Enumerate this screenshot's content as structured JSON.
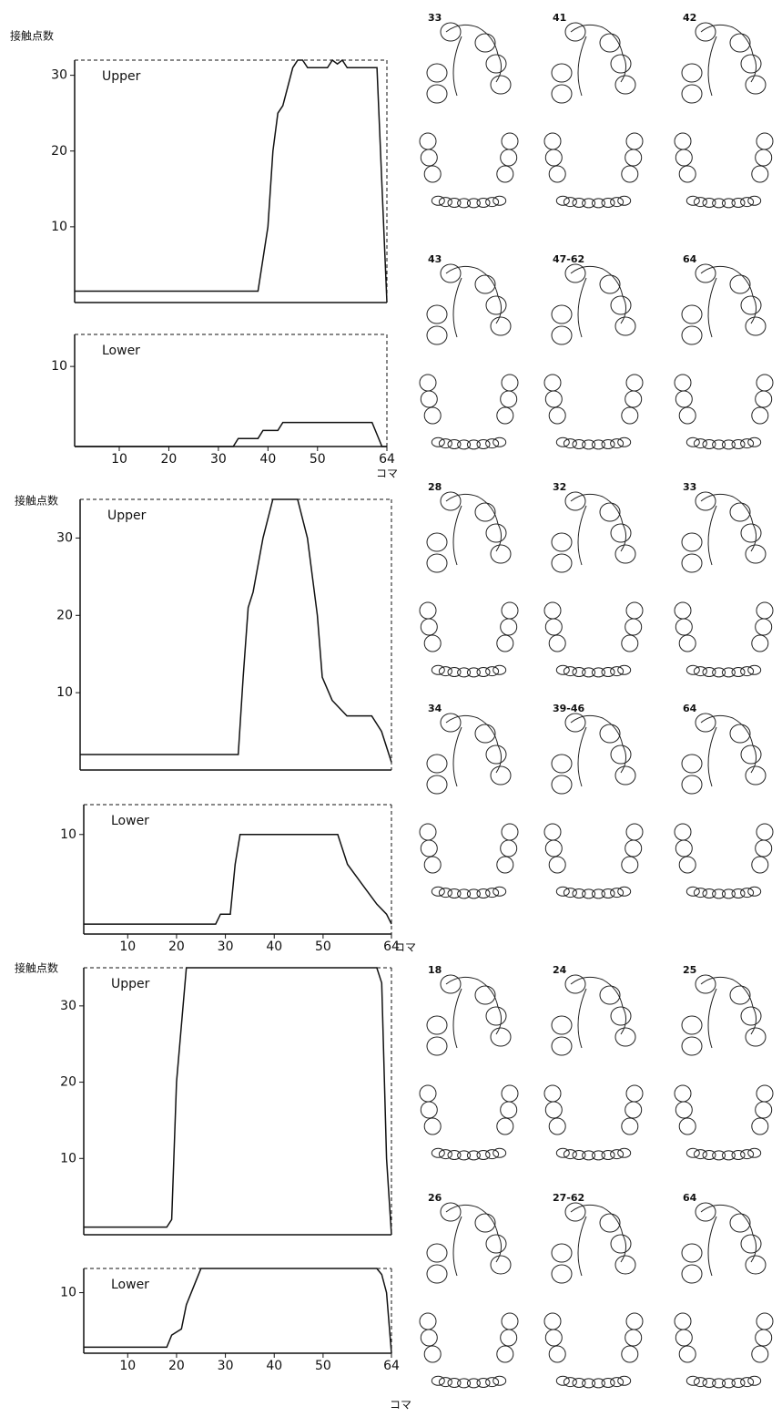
{
  "chart_data": [
    {
      "type": "line",
      "title": "Upper",
      "ylabel": "接触点数",
      "x": [
        1,
        38,
        40,
        41,
        42,
        43,
        45,
        46,
        47,
        48,
        52,
        53,
        54,
        55,
        56,
        62,
        64
      ],
      "values": [
        1.5,
        1.5,
        10,
        20,
        25,
        26,
        31,
        32,
        32,
        31,
        31,
        32,
        31.5,
        32,
        31,
        31,
        0
      ],
      "xlim": [
        1,
        64
      ],
      "ylim": [
        0,
        32
      ],
      "yticks": [
        10,
        20,
        30
      ],
      "color": "#111"
    },
    {
      "type": "line",
      "title": "Lower",
      "x": [
        1,
        33,
        34,
        38,
        39,
        42,
        43,
        61,
        63,
        64
      ],
      "values": [
        0,
        0,
        1,
        1,
        2,
        2,
        3,
        3,
        0,
        0
      ],
      "xlim": [
        1,
        64
      ],
      "ylim": [
        0,
        14
      ],
      "yticks": [
        10
      ],
      "xticks": [
        10,
        20,
        30,
        40,
        50,
        64
      ],
      "xlabel": "コマ",
      "color": "#111"
    },
    {
      "type": "line",
      "title": "Upper",
      "ylabel": "接触点数",
      "x": [
        1,
        33,
        34,
        35,
        36,
        38,
        40,
        45,
        47,
        49,
        50,
        52,
        55,
        60,
        62,
        64
      ],
      "values": [
        2,
        2,
        12,
        21,
        23,
        30,
        35,
        35,
        30,
        20,
        12,
        9,
        7,
        7,
        5,
        1
      ],
      "xlim": [
        1,
        64
      ],
      "ylim": [
        0,
        35
      ],
      "yticks": [
        10,
        20,
        30
      ],
      "color": "#111"
    },
    {
      "type": "line",
      "title": "Lower",
      "x": [
        1,
        28,
        29,
        31,
        32,
        33,
        53,
        55,
        58,
        61,
        63,
        64
      ],
      "values": [
        1,
        1,
        2,
        2,
        7,
        10,
        10,
        7,
        5,
        3,
        2,
        1
      ],
      "xlim": [
        1,
        64
      ],
      "ylim": [
        0,
        13
      ],
      "yticks": [
        10
      ],
      "xticks": [
        10,
        20,
        30,
        40,
        50,
        64
      ],
      "xlabel": "コマ",
      "color": "#111"
    },
    {
      "type": "line",
      "title": "Upper",
      "ylabel": "接触点数",
      "x": [
        1,
        18,
        19,
        20,
        22,
        61,
        62,
        63,
        64
      ],
      "values": [
        1,
        1,
        2,
        20,
        35,
        35,
        33,
        10,
        0
      ],
      "xlim": [
        1,
        64
      ],
      "ylim": [
        0,
        35
      ],
      "yticks": [
        10,
        20,
        30
      ],
      "color": "#111"
    },
    {
      "type": "line",
      "title": "Lower",
      "x": [
        1,
        18,
        19,
        21,
        22,
        24,
        25,
        61,
        62,
        63,
        64
      ],
      "values": [
        1,
        1,
        3,
        4,
        8,
        12,
        14,
        14,
        13,
        10,
        0
      ],
      "xlim": [
        1,
        64
      ],
      "ylim": [
        0,
        14
      ],
      "yticks": [
        10
      ],
      "xticks": [
        10,
        20,
        30,
        40,
        50,
        64
      ],
      "xlabel": "コマ",
      "color": "#111"
    }
  ],
  "diagrams": [
    {
      "frames": [
        [
          "33",
          "41",
          "42"
        ],
        [
          "43",
          "47-62",
          "64"
        ]
      ]
    },
    {
      "frames": [
        [
          "28",
          "32",
          "33"
        ],
        [
          "34",
          "39-46",
          "64"
        ]
      ]
    },
    {
      "frames": [
        [
          "18",
          "24",
          "25"
        ],
        [
          "26",
          "27-62",
          "64"
        ]
      ]
    }
  ]
}
